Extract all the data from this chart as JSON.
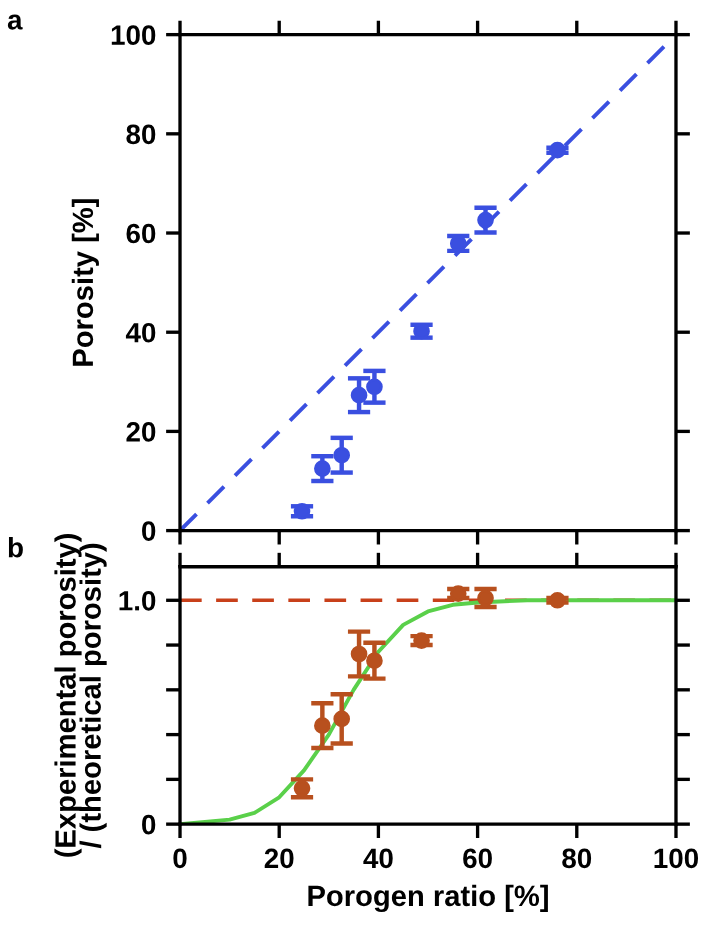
{
  "chart_data": [
    {
      "type": "scatter",
      "annotations": [
        "a"
      ],
      "ylabel": "Porosity [%]",
      "xlim": [
        0,
        100
      ],
      "xticks": [
        0,
        20,
        40,
        60,
        80,
        100
      ],
      "ylim": [
        0,
        100
      ],
      "yticks": [
        0,
        20,
        40,
        60,
        80,
        100
      ],
      "tick_labels": "y",
      "marker": "circle",
      "series": [
        {
          "color": "#3a4fe0",
          "x": [
            24.6,
            28.7,
            32.6,
            36.1,
            39.2,
            48.7,
            56.1,
            61.6,
            76.1
          ],
          "values": [
            3.9,
            12.5,
            15.2,
            27.3,
            29.0,
            40.2,
            57.9,
            62.6,
            76.7
          ],
          "errors": [
            1,
            2.5,
            3.5,
            3.4,
            3.2,
            1.3,
            1.5,
            2.5,
            0.5
          ]
        },
        {
          "type": "line",
          "color": "#3a4fe0",
          "line_style": "dashed",
          "marker": "none",
          "x": [
            0,
            100
          ],
          "values": [
            0,
            100
          ]
        }
      ]
    },
    {
      "type": "scatter",
      "annotations": [
        "b"
      ],
      "xlabel": "Porogen ratio [%]",
      "ylabel": "(Experimental porosity)\n/ (theoretical porosity)",
      "xlim": [
        0,
        100
      ],
      "xticks": [
        0,
        20,
        40,
        60,
        80,
        100
      ],
      "ylim": [
        0,
        1.15
      ],
      "yticks": [
        0,
        {
          "value": 0.2,
          "label": null
        },
        {
          "value": 0.4,
          "label": null
        },
        {
          "value": 0.6,
          "label": null
        },
        {
          "value": 0.8,
          "label": null
        },
        {
          "value": 1.0,
          "label": "1.0"
        }
      ],
      "marker": "circle",
      "ref_lines": [
        {
          "axis": "y",
          "value": 1.0,
          "color": "#c8401a",
          "line_style": "dashed"
        }
      ],
      "series": [
        {
          "type": "line",
          "color": "#5ad04a",
          "line_style": "solid",
          "marker": "none",
          "x": [
            0,
            10,
            15,
            20,
            25,
            30,
            35,
            40,
            45,
            50,
            55,
            60,
            70,
            80,
            100
          ],
          "values": [
            0,
            0.02,
            0.05,
            0.12,
            0.24,
            0.4,
            0.6,
            0.77,
            0.89,
            0.95,
            0.98,
            0.99,
            1.0,
            1.0,
            1.0
          ]
        },
        {
          "color": "#b8501e",
          "x": [
            24.6,
            28.7,
            32.6,
            36.1,
            39.2,
            48.7,
            56.1,
            61.6,
            76.1
          ],
          "values": [
            0.16,
            0.44,
            0.47,
            0.76,
            0.73,
            0.82,
            1.03,
            1.01,
            1.0
          ],
          "errors": [
            0.04,
            0.1,
            0.11,
            0.1,
            0.08,
            0.02,
            0.02,
            0.04,
            0.01
          ]
        }
      ]
    }
  ]
}
